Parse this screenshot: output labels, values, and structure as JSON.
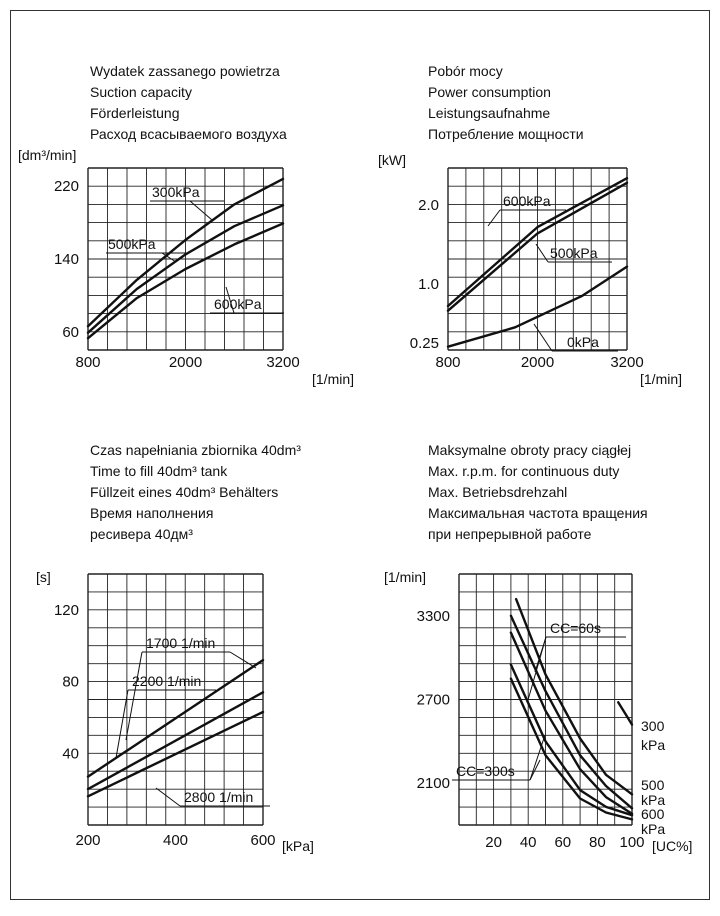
{
  "chart_data": [
    {
      "type": "line",
      "title_lines": [
        "Wydatek zassanego powietrza",
        "Suction capacity",
        "Förderleistung",
        "Расход всасываемого воздуха"
      ],
      "ylabel": "[dm³/min]",
      "xlabel": "[1/min]",
      "xlim": [
        800,
        3200
      ],
      "ylim": [
        40,
        240
      ],
      "xticks": [
        800,
        2000,
        3200
      ],
      "xtick_labels": [
        "800",
        "2000",
        "3200"
      ],
      "yticks": [
        60,
        140,
        220
      ],
      "ytick_labels": [
        "60",
        "140",
        "220"
      ],
      "grid": true,
      "series": [
        {
          "name": "300kPa",
          "x": [
            800,
            1400,
            2000,
            2600,
            3200
          ],
          "y": [
            66,
            117,
            161,
            200,
            228
          ]
        },
        {
          "name": "500kPa",
          "x": [
            800,
            1400,
            2000,
            2600,
            3200
          ],
          "y": [
            59,
            107,
            145,
            176,
            199
          ]
        },
        {
          "name": "600kPa",
          "x": [
            800,
            1400,
            2000,
            2600,
            3200
          ],
          "y": [
            53,
            97,
            129,
            156,
            179
          ]
        }
      ]
    },
    {
      "type": "line",
      "title_lines": [
        "Pobór mocy",
        "Power consumption",
        "Leistungsaufnahme",
        "Потребление мощности"
      ],
      "ylabel": "[kW]",
      "xlabel": "[1/min]",
      "xlim": [
        800,
        3200
      ],
      "yticks": [
        0.25,
        1.0,
        2.0
      ],
      "ytick_labels": [
        "0.25",
        "1.0",
        "2.0"
      ],
      "xticks": [
        800,
        2000,
        3200
      ],
      "xtick_labels": [
        "800",
        "2000",
        "3200"
      ],
      "grid": true,
      "series": [
        {
          "name": "600kPa",
          "x": [
            800,
            2000,
            3200
          ],
          "y": [
            0.72,
            1.72,
            2.58
          ]
        },
        {
          "name": "500kPa",
          "x": [
            800,
            2000,
            3200
          ],
          "y": [
            0.66,
            1.64,
            2.48
          ]
        },
        {
          "name": "0kPa",
          "x": [
            800,
            1700,
            2600,
            3200
          ],
          "y": [
            0.17,
            0.45,
            0.85,
            1.22
          ]
        }
      ]
    },
    {
      "type": "line",
      "title_lines": [
        "Czas napełniania zbiornika 40dm³",
        "Time to fill  40dm³ tank",
        "Füllzeit eines  40dm³ Behälters",
        "Время наполнения",
        "ресивера 40дм³"
      ],
      "ylabel": "[s]",
      "xlabel": "[kPa]",
      "xlim": [
        200,
        600
      ],
      "ylim": [
        0,
        140
      ],
      "xticks": [
        200,
        400,
        600
      ],
      "xtick_labels": [
        "200",
        "400",
        "600"
      ],
      "yticks": [
        40,
        80,
        120
      ],
      "ytick_labels": [
        "40",
        "80",
        "120"
      ],
      "grid": true,
      "series": [
        {
          "name": "1700 1/min",
          "x": [
            200,
            600
          ],
          "y": [
            27,
            92
          ]
        },
        {
          "name": "2200 1/min",
          "x": [
            200,
            600
          ],
          "y": [
            20,
            74
          ]
        },
        {
          "name": "2800 1/min",
          "x": [
            200,
            600
          ],
          "y": [
            16,
            63
          ]
        }
      ]
    },
    {
      "type": "line",
      "title_lines": [
        "Maksymalne obroty pracy ciągłej",
        "Max. r.p.m. for continuous duty",
        "Max. Betriebsdrehzahl",
        "Максимальная частота вращения",
        "при непрерывной работе"
      ],
      "ylabel": "[1/min]",
      "xlabel": "[UC%]",
      "xlim": [
        0,
        100
      ],
      "ylim": [
        1800,
        3600
      ],
      "xticks": [
        20,
        40,
        60,
        80,
        100
      ],
      "xtick_labels": [
        "20",
        "40",
        "60",
        "80",
        "100"
      ],
      "yticks": [
        2100,
        2700,
        3300
      ],
      "ytick_labels": [
        "2100",
        "2700",
        "3300"
      ],
      "grid": true,
      "curve_labels": [
        "CC=60s",
        "CC=300s"
      ],
      "series": [
        {
          "name": "300 kPa",
          "group": "CC=60s",
          "x": [
            33,
            50,
            70,
            85,
            100
          ],
          "y": [
            3420,
            2880,
            2420,
            2160,
            2020
          ]
        },
        {
          "name": "500 kPa",
          "group": "CC=60s",
          "x": [
            30,
            50,
            70,
            85,
            100
          ],
          "y": [
            3300,
            2760,
            2300,
            2080,
            1920
          ]
        },
        {
          "name": "600 kPa",
          "group": "CC=60s",
          "x": [
            30,
            50,
            70,
            85,
            100
          ],
          "y": [
            3180,
            2620,
            2200,
            2000,
            1880
          ]
        },
        {
          "name": "300 kPa",
          "group": "CC=300s",
          "x": [
            92,
            96,
            100
          ],
          "y": [
            2680,
            2600,
            2520
          ]
        },
        {
          "name": "500 kPa",
          "group": "CC=300s",
          "x": [
            30,
            50,
            70,
            85,
            100
          ],
          "y": [
            2950,
            2400,
            2050,
            1930,
            1870
          ]
        },
        {
          "name": "600 kPa",
          "group": "CC=300s",
          "x": [
            30,
            50,
            70,
            85,
            100
          ],
          "y": [
            2850,
            2300,
            1990,
            1890,
            1840
          ]
        }
      ],
      "side_labels": [
        "300",
        "kPa",
        "500",
        "kPa",
        "600",
        "kPa"
      ]
    }
  ]
}
